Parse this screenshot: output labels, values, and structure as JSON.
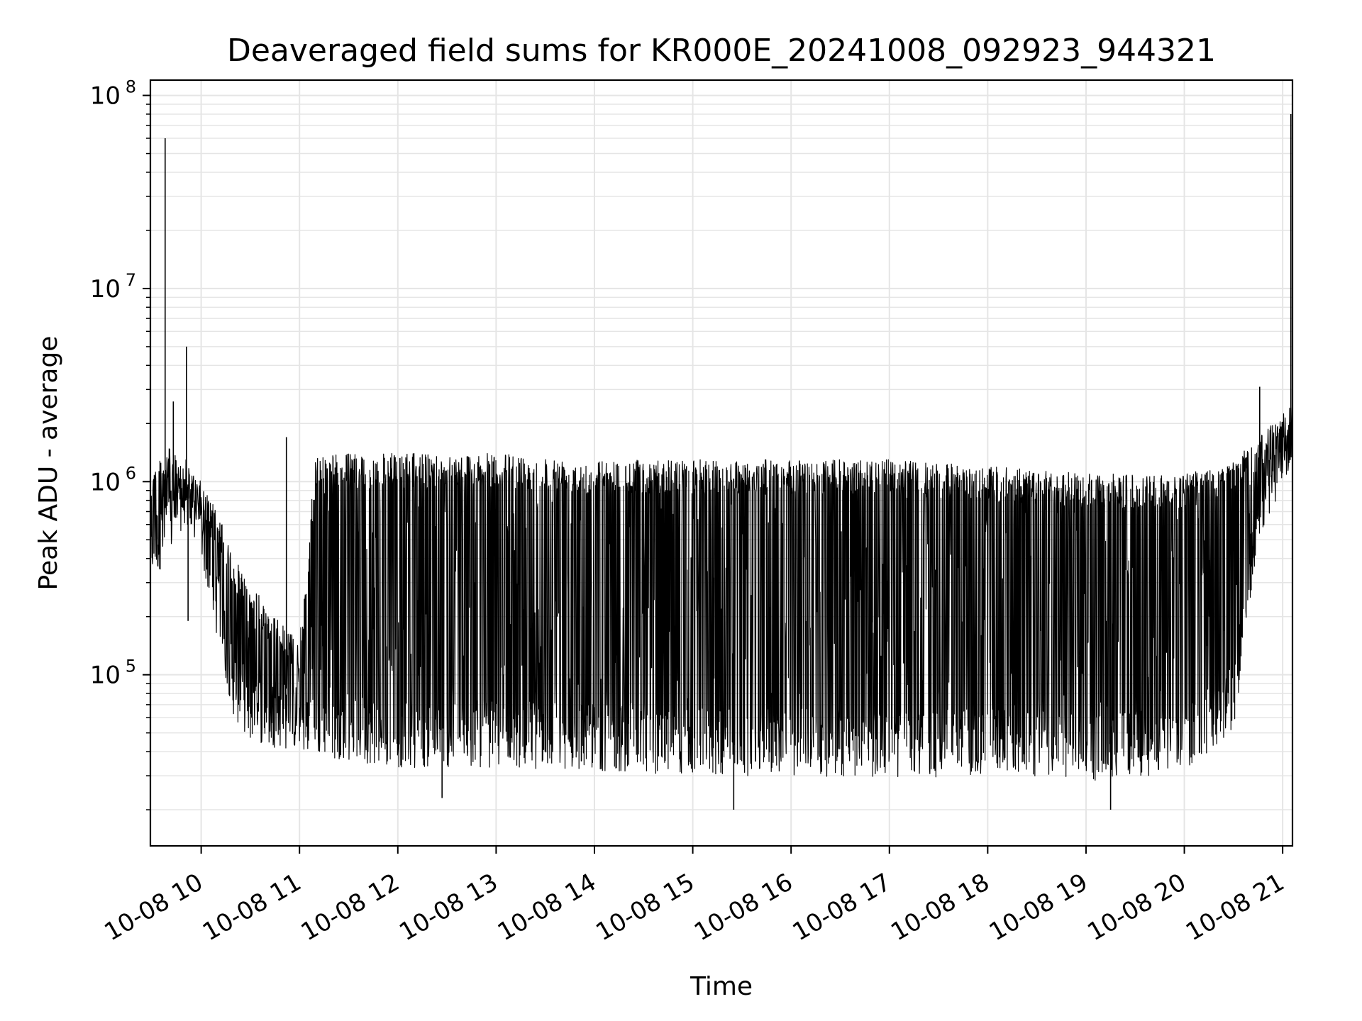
{
  "chart_data": {
    "type": "line",
    "title": "Deaveraged field sums for KR000E_20241008_092923_944321",
    "xlabel": "Time",
    "ylabel": "Peak ADU - average",
    "yscale": "log",
    "grid": true,
    "line_color": "#000000",
    "grid_color": "#e5e5e5",
    "xlim": [
      "2024-10-08 09:29",
      "2024-10-08 21:06"
    ],
    "ylim": [
      13000,
      120000000
    ],
    "x_ticks": [
      {
        "value": "2024-10-08 10:00",
        "label": "10-08 10"
      },
      {
        "value": "2024-10-08 11:00",
        "label": "10-08 11"
      },
      {
        "value": "2024-10-08 12:00",
        "label": "10-08 12"
      },
      {
        "value": "2024-10-08 13:00",
        "label": "10-08 13"
      },
      {
        "value": "2024-10-08 14:00",
        "label": "10-08 14"
      },
      {
        "value": "2024-10-08 15:00",
        "label": "10-08 15"
      },
      {
        "value": "2024-10-08 16:00",
        "label": "10-08 16"
      },
      {
        "value": "2024-10-08 17:00",
        "label": "10-08 17"
      },
      {
        "value": "2024-10-08 18:00",
        "label": "10-08 18"
      },
      {
        "value": "2024-10-08 19:00",
        "label": "10-08 19"
      },
      {
        "value": "2024-10-08 20:00",
        "label": "10-08 20"
      },
      {
        "value": "2024-10-08 21:00",
        "label": "10-08 21"
      }
    ],
    "y_ticks": [
      {
        "value": 100000,
        "base": "10",
        "exp": "5"
      },
      {
        "value": 1000000,
        "base": "10",
        "exp": "6"
      },
      {
        "value": 10000000,
        "base": "10",
        "exp": "7"
      },
      {
        "value": 100000000,
        "base": "10",
        "exp": "8"
      }
    ],
    "series": [
      {
        "envelope": [
          {
            "x": "2024-10-08 09:29",
            "low": 300000,
            "high": 1200000
          },
          {
            "x": "2024-10-08 09:40",
            "low": 400000,
            "high": 1500000
          },
          {
            "x": "2024-10-08 09:50",
            "low": 600000,
            "high": 1200000
          },
          {
            "x": "2024-10-08 10:00",
            "low": 400000,
            "high": 1000000
          },
          {
            "x": "2024-10-08 10:10",
            "low": 150000,
            "high": 700000
          },
          {
            "x": "2024-10-08 10:20",
            "low": 60000,
            "high": 400000
          },
          {
            "x": "2024-10-08 10:30",
            "low": 45000,
            "high": 300000
          },
          {
            "x": "2024-10-08 10:45",
            "low": 42000,
            "high": 200000
          },
          {
            "x": "2024-10-08 11:00",
            "low": 40000,
            "high": 150000
          },
          {
            "x": "2024-10-08 11:10",
            "low": 38000,
            "high": 1400000
          },
          {
            "x": "2024-10-08 11:30",
            "low": 36000,
            "high": 1400000
          },
          {
            "x": "2024-10-08 12:00",
            "low": 33000,
            "high": 1400000
          },
          {
            "x": "2024-10-08 13:00",
            "low": 33000,
            "high": 1400000
          },
          {
            "x": "2024-10-08 14:00",
            "low": 32000,
            "high": 1300000
          },
          {
            "x": "2024-10-08 15:00",
            "low": 30000,
            "high": 1300000
          },
          {
            "x": "2024-10-08 16:00",
            "low": 30000,
            "high": 1300000
          },
          {
            "x": "2024-10-08 17:00",
            "low": 29000,
            "high": 1300000
          },
          {
            "x": "2024-10-08 18:00",
            "low": 30000,
            "high": 1200000
          },
          {
            "x": "2024-10-08 19:00",
            "low": 28000,
            "high": 1100000
          },
          {
            "x": "2024-10-08 19:40",
            "low": 30000,
            "high": 1100000
          },
          {
            "x": "2024-10-08 20:00",
            "low": 32000,
            "high": 1100000
          },
          {
            "x": "2024-10-08 20:30",
            "low": 50000,
            "high": 1300000
          },
          {
            "x": "2024-10-08 20:45",
            "low": 500000,
            "high": 1700000
          },
          {
            "x": "2024-10-08 21:06",
            "low": 1200000,
            "high": 2500000
          }
        ],
        "spikes": [
          {
            "x": "2024-10-08 09:38",
            "y": 60000000
          },
          {
            "x": "2024-10-08 09:43",
            "y": 2600000
          },
          {
            "x": "2024-10-08 09:51",
            "y": 5000000
          },
          {
            "x": "2024-10-08 09:52",
            "y": 190000
          },
          {
            "x": "2024-10-08 10:52",
            "y": 1700000
          },
          {
            "x": "2024-10-08 12:27",
            "y": 23000
          },
          {
            "x": "2024-10-08 15:25",
            "y": 20000
          },
          {
            "x": "2024-10-08 19:15",
            "y": 20000
          },
          {
            "x": "2024-10-08 20:46",
            "y": 3100000
          },
          {
            "x": "2024-10-08 21:05",
            "y": 80000000
          }
        ]
      }
    ]
  }
}
